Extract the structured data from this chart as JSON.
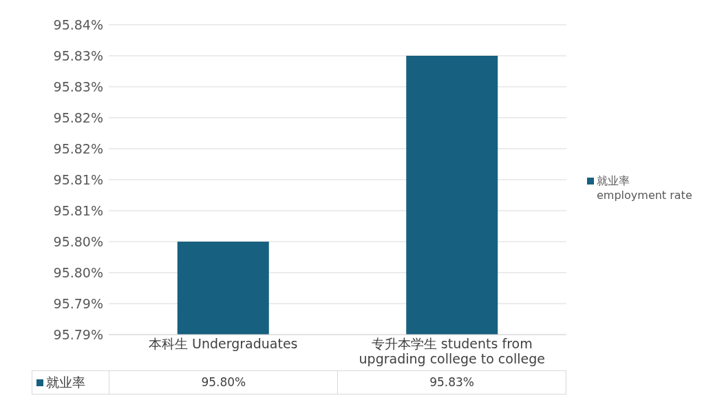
{
  "chart_data": {
    "type": "bar",
    "categories": [
      "本科生 Undergraduates",
      "专升本学生 students from upgrading college to college"
    ],
    "series": [
      {
        "name": "就业率\nemployment rate",
        "color": "#17607f",
        "values": [
          95.8,
          95.83
        ],
        "value_labels": [
          "95.80%",
          "95.83%"
        ]
      }
    ],
    "ylim": [
      95.785,
      95.835
    ],
    "yticks": [
      {
        "value": 95.785,
        "label": "95.79%"
      },
      {
        "value": 95.79,
        "label": "95.79%"
      },
      {
        "value": 95.795,
        "label": "95.80%"
      },
      {
        "value": 95.8,
        "label": "95.80%"
      },
      {
        "value": 95.805,
        "label": "95.81%"
      },
      {
        "value": 95.81,
        "label": "95.81%"
      },
      {
        "value": 95.815,
        "label": "95.82%"
      },
      {
        "value": 95.82,
        "label": "95.82%"
      },
      {
        "value": 95.825,
        "label": "95.83%"
      },
      {
        "value": 95.83,
        "label": "95.83%"
      },
      {
        "value": 95.835,
        "label": "95.84%"
      }
    ],
    "annotations": [
      "就业率"
    ],
    "grid": "y",
    "legend": "right"
  }
}
